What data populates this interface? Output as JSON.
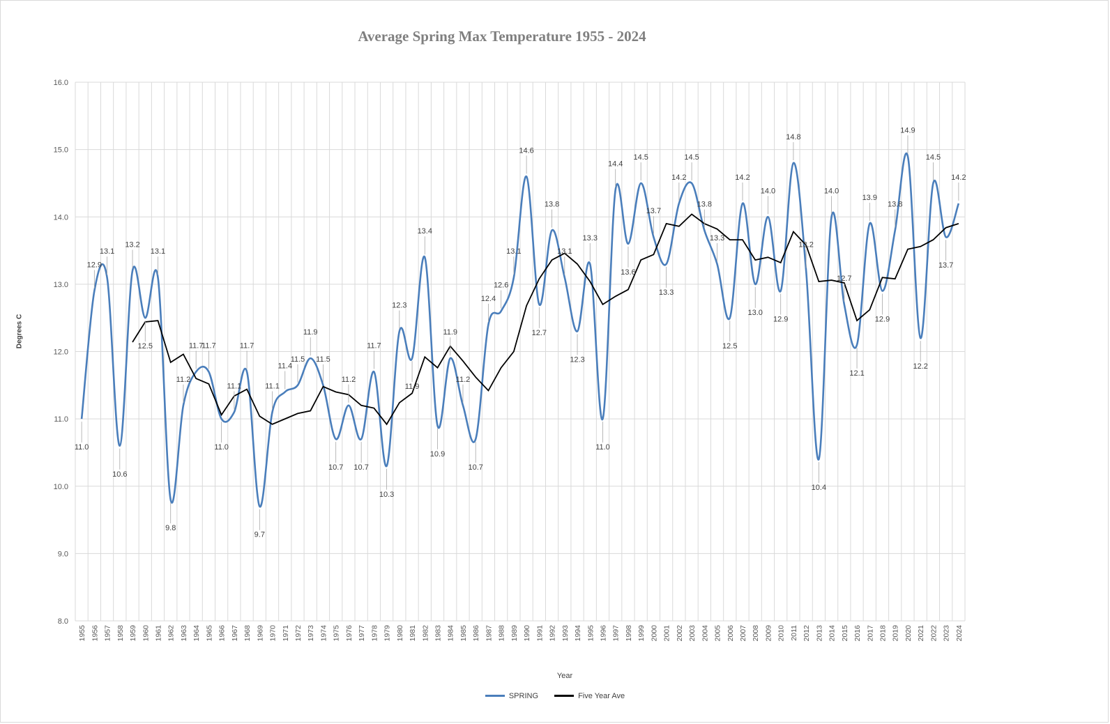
{
  "chart_data": {
    "type": "line",
    "title": "Average Spring Max Temperature 1955 - 2024",
    "xlabel": "Year",
    "ylabel": "Degrees C",
    "ylim": [
      8.0,
      16.0
    ],
    "yticks": [
      "8.0",
      "9.0",
      "10.0",
      "11.0",
      "12.0",
      "13.0",
      "14.0",
      "15.0",
      "16.0"
    ],
    "grid": true,
    "legend_position": "bottom",
    "x": [
      1955,
      1956,
      1957,
      1958,
      1959,
      1960,
      1961,
      1962,
      1963,
      1964,
      1965,
      1966,
      1967,
      1968,
      1969,
      1970,
      1971,
      1972,
      1973,
      1974,
      1975,
      1976,
      1977,
      1978,
      1979,
      1980,
      1981,
      1982,
      1983,
      1984,
      1985,
      1986,
      1987,
      1988,
      1989,
      1990,
      1991,
      1992,
      1993,
      1994,
      1995,
      1996,
      1997,
      1998,
      1999,
      2000,
      2001,
      2002,
      2003,
      2004,
      2005,
      2006,
      2007,
      2008,
      2009,
      2010,
      2011,
      2012,
      2013,
      2014,
      2015,
      2016,
      2017,
      2018,
      2019,
      2020,
      2021,
      2022,
      2023,
      2024
    ],
    "series": [
      {
        "name": "SPRING",
        "color": "#4a7ebb",
        "values": [
          11.0,
          12.9,
          13.1,
          10.6,
          13.2,
          12.5,
          13.1,
          9.8,
          11.2,
          11.7,
          11.7,
          11.0,
          11.1,
          11.7,
          9.7,
          11.1,
          11.4,
          11.5,
          11.9,
          11.5,
          10.7,
          11.2,
          10.7,
          11.7,
          10.3,
          12.3,
          11.9,
          13.4,
          10.9,
          11.9,
          11.2,
          10.7,
          12.4,
          12.6,
          13.1,
          14.6,
          12.7,
          13.8,
          13.1,
          12.3,
          13.3,
          11.0,
          14.4,
          13.6,
          14.5,
          13.7,
          13.3,
          14.2,
          14.5,
          13.8,
          13.3,
          12.5,
          14.2,
          13.0,
          14.0,
          12.9,
          14.8,
          13.2,
          10.4,
          14.0,
          12.7,
          12.1,
          13.9,
          12.9,
          13.8,
          14.9,
          12.2,
          14.5,
          13.7,
          14.2
        ],
        "labels": [
          "11.0",
          "12.9",
          "13.1",
          "10.6",
          "13.2",
          "12.5",
          "13.1",
          "9.8",
          "11.2",
          "11.7",
          "11.7",
          "11.0",
          "11.1",
          "11.7",
          "9.7",
          "11.1",
          "11.4",
          "11.5",
          "11.9",
          "11.5",
          "10.7",
          "11.2",
          "10.7",
          "11.7",
          "10.3",
          "12.3",
          "11.9",
          "13.4",
          "10.9",
          "11.9",
          "11.2",
          "10.7",
          "12.4",
          "12.6",
          "13.1",
          "14.6",
          "12.7",
          "13.8",
          "13.1",
          "12.3",
          "13.3",
          "11.0",
          "14.4",
          "13.6",
          "14.5",
          "13.7",
          "13.3",
          "14.2",
          "14.5",
          "13.8",
          "13.3",
          "12.5",
          "14.2",
          "13.0",
          "14.0",
          "12.9",
          "14.8",
          "13.2",
          "10.4",
          "14.0",
          "12.7",
          "12.1",
          "13.9",
          "12.9",
          "13.8",
          "14.9",
          "12.2",
          "14.5",
          "13.7",
          "14.2"
        ]
      },
      {
        "name": "Five Year Ave",
        "color": "#000000",
        "values": [
          null,
          null,
          null,
          null,
          12.14,
          12.44,
          12.46,
          11.84,
          11.96,
          11.6,
          11.52,
          11.06,
          11.34,
          11.44,
          11.04,
          10.92,
          11.0,
          11.08,
          11.12,
          11.48,
          11.4,
          11.36,
          11.2,
          11.16,
          10.92,
          11.24,
          11.38,
          11.92,
          11.76,
          12.08,
          11.86,
          11.62,
          11.42,
          11.76,
          12.0,
          12.68,
          13.08,
          13.36,
          13.46,
          13.3,
          13.04,
          12.7,
          12.82,
          12.92,
          13.36,
          13.44,
          13.9,
          13.86,
          14.04,
          13.9,
          13.82,
          13.66,
          13.66,
          13.36,
          13.4,
          13.32,
          13.78,
          13.58,
          13.04,
          13.06,
          13.02,
          12.46,
          12.62,
          13.1,
          13.08,
          13.52,
          13.56,
          13.66,
          13.84,
          13.9
        ]
      }
    ]
  }
}
